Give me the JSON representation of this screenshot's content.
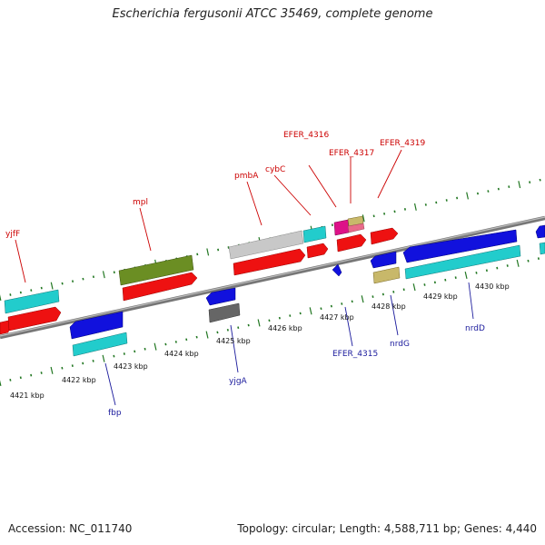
{
  "title": "Escherichia fergusonii ATCC 35469, complete genome",
  "footer": {
    "accession": "Accession: NC_011740",
    "summary": "Topology: circular; Length: 4,588,711 bp; Genes: 4,440"
  },
  "kbp_labels": [
    "4421 kbp",
    "4422 kbp",
    "4423 kbp",
    "4424 kbp",
    "4425 kbp",
    "4426 kbp",
    "4427 kbp",
    "4428 kbp",
    "4429 kbp",
    "4430 kbp"
  ],
  "upper_genes": [
    "yjfF",
    "mpl",
    "pmbA",
    "cybC",
    "EFER_4316",
    "EFER_4317",
    "EFER_4319"
  ],
  "lower_genes": [
    "fbp",
    "yjgA",
    "EFER_4315",
    "nrdG",
    "nrdD"
  ],
  "colors": {
    "red": "#ee1111",
    "cyan": "#22cccc",
    "blue": "#1111dd",
    "olive": "#6b8e23",
    "gray": "#c8c8c8",
    "darkgray": "#666666",
    "magenta": "#dd1188",
    "khaki": "#c8b86a",
    "tick_green": "#227722",
    "label_red": "#cc0000",
    "label_blue": "#1a1a9c"
  }
}
